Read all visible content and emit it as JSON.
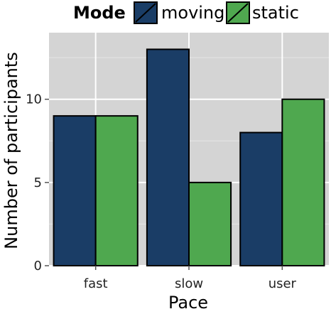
{
  "chart_data": {
    "type": "bar",
    "title": "",
    "xlabel": "Pace",
    "ylabel": "Number of participants",
    "categories": [
      "fast",
      "slow",
      "user"
    ],
    "series": [
      {
        "name": "moving",
        "values": [
          9,
          13,
          8
        ],
        "color": "#1a3d66"
      },
      {
        "name": "static",
        "values": [
          9,
          5,
          10
        ],
        "color": "#4fa84f"
      }
    ],
    "ylim": [
      0,
      14
    ],
    "yticks": [
      0,
      5,
      10
    ],
    "grid": true,
    "legend": {
      "title": "Mode",
      "placement": "top",
      "entries": [
        "moving",
        "static"
      ]
    }
  }
}
